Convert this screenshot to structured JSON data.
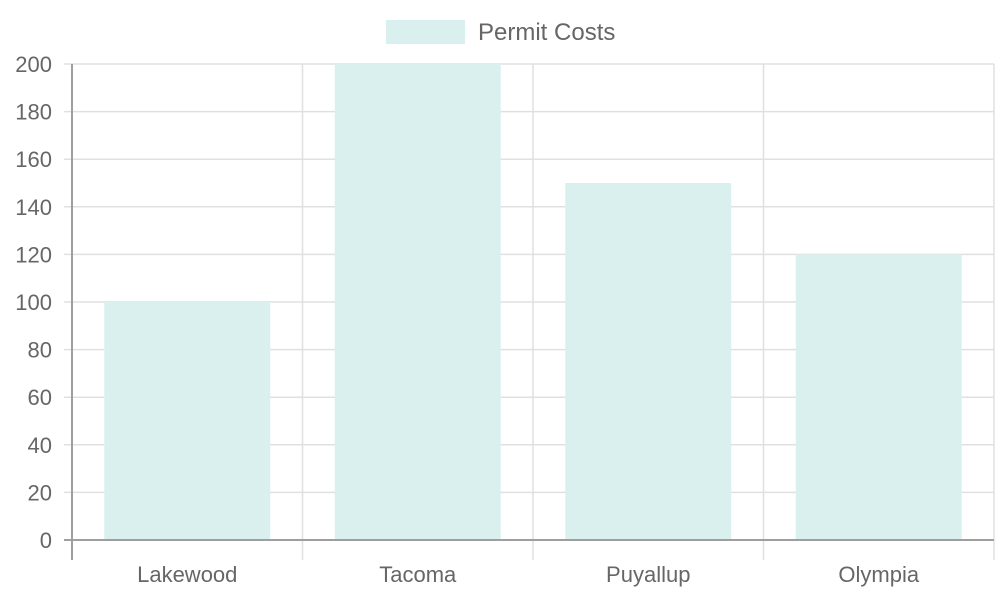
{
  "chart_data": {
    "type": "bar",
    "categories": [
      "Lakewood",
      "Tacoma",
      "Puyallup",
      "Olympia"
    ],
    "series": [
      {
        "name": "Permit Costs",
        "values": [
          100,
          200,
          150,
          120
        ]
      }
    ],
    "title": "",
    "xlabel": "",
    "ylabel": "",
    "ylim": [
      0,
      200
    ],
    "yticks": [
      0,
      20,
      40,
      60,
      80,
      100,
      120,
      140,
      160,
      180,
      200
    ],
    "grid": true,
    "legend_position": "top",
    "colors": {
      "bar_fill": "#d9f0ef",
      "grid": "#e0e0e0",
      "axis": "#9e9e9e",
      "text": "#666666"
    }
  }
}
